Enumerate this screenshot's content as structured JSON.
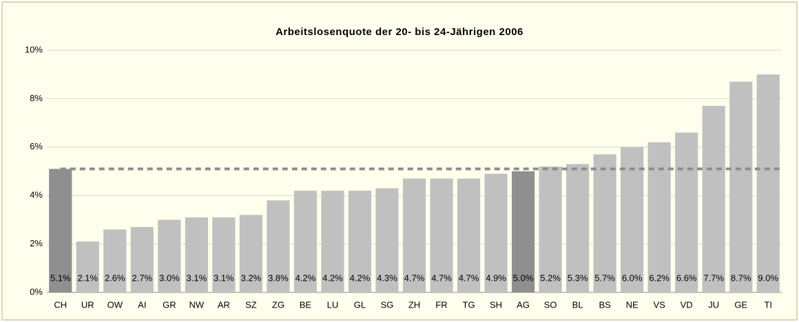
{
  "chart_data": {
    "type": "bar",
    "title": "Arbeitslosenquote der 20- bis 24-Jährigen 2006",
    "categories": [
      "CH",
      "UR",
      "OW",
      "AI",
      "GR",
      "NW",
      "AR",
      "SZ",
      "ZG",
      "BE",
      "LU",
      "GL",
      "SG",
      "ZH",
      "FR",
      "TG",
      "SH",
      "AG",
      "SO",
      "BL",
      "BS",
      "NE",
      "VS",
      "VD",
      "JU",
      "GE",
      "TI"
    ],
    "values": [
      5.1,
      2.1,
      2.6,
      2.7,
      3.0,
      3.1,
      3.1,
      3.2,
      3.8,
      4.2,
      4.2,
      4.2,
      4.3,
      4.7,
      4.7,
      4.7,
      4.9,
      5.0,
      5.2,
      5.3,
      5.7,
      6.0,
      6.2,
      6.6,
      7.7,
      8.7,
      9.0
    ],
    "value_labels": [
      "5.1%",
      "2.1%",
      "2.6%",
      "2.7%",
      "3.0%",
      "3.1%",
      "3.1%",
      "3.2%",
      "3.8%",
      "4.2%",
      "4.2%",
      "4.2%",
      "4.3%",
      "4.7%",
      "4.7%",
      "4.7%",
      "4.9%",
      "5.0%",
      "5.2%",
      "5.3%",
      "5.7%",
      "6.0%",
      "6.2%",
      "6.6%",
      "7.7%",
      "8.7%",
      "9.0%"
    ],
    "colors": [
      "#8f8f8f",
      "#c0c0c0",
      "#c0c0c0",
      "#c0c0c0",
      "#c0c0c0",
      "#c0c0c0",
      "#c0c0c0",
      "#c0c0c0",
      "#c0c0c0",
      "#c0c0c0",
      "#c0c0c0",
      "#c0c0c0",
      "#c0c0c0",
      "#c0c0c0",
      "#c0c0c0",
      "#c0c0c0",
      "#c0c0c0",
      "#8f8f8f",
      "#c0c0c0",
      "#c0c0c0",
      "#c0c0c0",
      "#c0c0c0",
      "#c0c0c0",
      "#c0c0c0",
      "#c0c0c0",
      "#c0c0c0",
      "#c0c0c0"
    ],
    "reference_line": 5.1,
    "reference_color": "#8c8c8c",
    "ylim": [
      0,
      10
    ],
    "yticks": [
      {
        "value": 0,
        "label": "0%"
      },
      {
        "value": 2,
        "label": "2%"
      },
      {
        "value": 4,
        "label": "4%"
      },
      {
        "value": 6,
        "label": "6%"
      },
      {
        "value": 8,
        "label": "8%"
      },
      {
        "value": 10,
        "label": "10%"
      }
    ],
    "grid": true
  }
}
